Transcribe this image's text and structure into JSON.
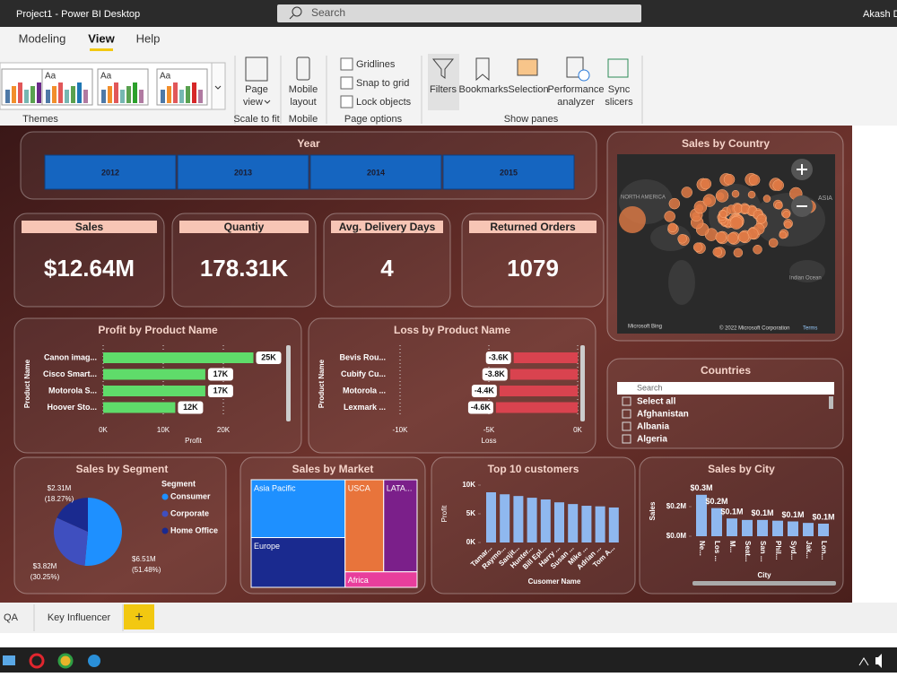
{
  "window": {
    "title": "Project1 - Power BI Desktop",
    "search": "Search",
    "user": "Akash D"
  },
  "ribbon": {
    "tabs": [
      "Modeling",
      "View",
      "Help"
    ],
    "theme_sample": "Aa",
    "groups": [
      {
        "name": "Themes"
      },
      {
        "name": "Scale to fit",
        "buttons": [
          [
            "Page",
            "view"
          ]
        ]
      },
      {
        "name": "Mobile",
        "buttons": [
          [
            "Mobile",
            "layout"
          ]
        ]
      },
      {
        "name": "Page options",
        "options": [
          "Gridlines",
          "Snap to grid",
          "Lock objects"
        ]
      },
      {
        "name": "Show panes",
        "buttons": [
          [
            "Filters"
          ],
          [
            "Bookmarks"
          ],
          [
            "Selection"
          ],
          [
            "Performance",
            "analyzer"
          ],
          [
            "Sync",
            "slicers"
          ]
        ]
      }
    ]
  },
  "report": {
    "year_slicer": {
      "title": "Year",
      "years": [
        "2012",
        "2013",
        "2014",
        "2015"
      ]
    },
    "cards": [
      {
        "label": "Sales",
        "value": "$12.64M"
      },
      {
        "label": "Quantiy",
        "value": "178.31K"
      },
      {
        "label": "Avg. Delivery Days",
        "value": "4"
      },
      {
        "label": "Returned Orders",
        "value": "1079"
      }
    ],
    "profit": {
      "type": "bar",
      "title": "Profit by Product Name",
      "y_label": "Product Name",
      "x_label": "Profit",
      "categories": [
        "Canon imag...",
        "Cisco Smart...",
        "Motorola S...",
        "Hoover Sto..."
      ],
      "values": [
        25000,
        17000,
        17000,
        12000
      ],
      "value_labels": [
        "25K",
        "17K",
        "17K",
        "12K"
      ],
      "color": "#5fdc6a",
      "xlim": [
        0,
        30000
      ],
      "xticks": [
        {
          "value": 0,
          "label": "0K"
        },
        {
          "value": 10000,
          "label": "10K"
        },
        {
          "value": 20000,
          "label": "20K"
        }
      ]
    },
    "loss": {
      "type": "bar",
      "title": "Loss by Product Name",
      "y_label": "Product Name",
      "x_label": "Loss",
      "categories": [
        "Bevis Rou...",
        "Cubify Cu...",
        "Motorola ...",
        "Lexmark ..."
      ],
      "values": [
        -3600,
        -3800,
        -4400,
        -4600
      ],
      "value_labels": [
        "-3.6K",
        "-3.8K",
        "-4.4K",
        "-4.6K"
      ],
      "color": "#d9434f",
      "xlim": [
        -10000,
        0
      ],
      "xticks": [
        {
          "value": -10000,
          "label": "-10K"
        },
        {
          "value": -5000,
          "label": "-5K"
        },
        {
          "value": 0,
          "label": "0K"
        }
      ]
    },
    "map": {
      "title": "Sales by Country",
      "labels": [
        "NORTH AMERICA",
        "ASIA",
        "Indian Ocean"
      ],
      "attribution": "Microsoft Bing",
      "copyright": "© 2022 Microsoft Corporation",
      "terms": "Terms"
    },
    "countries": {
      "title": "Countries",
      "search": "Search",
      "items": [
        "Select all",
        "Afghanistan",
        "Albania",
        "Algeria"
      ]
    },
    "segment": {
      "type": "pie",
      "title": "Sales by Segment",
      "legend_title": "Segment",
      "categories": [
        "Consumer",
        "Corporate",
        "Home Office"
      ],
      "colors": [
        "#1e90ff",
        "#3f4fbf",
        "#1a2a8f"
      ],
      "values": [
        51.48,
        30.25,
        18.27
      ],
      "value_labels": [
        "(51.48%)",
        "(30.25%)",
        "(18.27%)"
      ],
      "amount_labels": [
        "$6.51M",
        "$3.82M",
        "$2.31M"
      ]
    },
    "market": {
      "type": "treemap",
      "title": "Sales by Market",
      "categories": [
        "Asia Pacific",
        "Europe",
        "USCA",
        "LATA...",
        "Africa"
      ],
      "values": [
        3.85,
        3.31,
        2.52,
        2.18,
        0.79
      ],
      "colors": [
        "#1e90ff",
        "#1a2a8f",
        "#e8743b",
        "#7b1f8a",
        "#e83e9c"
      ]
    },
    "top_customers": {
      "type": "bar",
      "title": "Top 10 customers",
      "y_label": "Profit",
      "x_label": "Cusomer Name",
      "categories": [
        "Tamar...",
        "Raymo...",
        "Sanjit...",
        "Hunter...",
        "Bill Epl...",
        "Harry ...",
        "Susan ...",
        "Mike ...",
        "Adrian ...",
        "Tom A..."
      ],
      "values": [
        8750,
        8400,
        8100,
        7800,
        7500,
        7000,
        6700,
        6400,
        6300,
        6100
      ],
      "color": "#8fb8ef",
      "ylim": [
        0,
        10000
      ],
      "yticks": [
        {
          "value": 0,
          "label": "0K"
        },
        {
          "value": 5000,
          "label": "5K"
        },
        {
          "value": 10000,
          "label": "10K"
        }
      ]
    },
    "city": {
      "type": "bar",
      "title": "Sales by City",
      "y_label": "Sales",
      "x_label": "City",
      "categories": [
        "Ne...",
        "Los ...",
        "M...",
        "Seat...",
        "San ...",
        "Phil...",
        "Syd...",
        "Jak...",
        "Lon..."
      ],
      "values": [
        280000,
        190000,
        120000,
        110000,
        110000,
        105000,
        100000,
        90000,
        85000
      ],
      "value_labels": [
        "$0.3M",
        "$0.2M",
        "$0.1M",
        null,
        "$0.1M",
        null,
        "$0.1M",
        null,
        "$0.1M"
      ],
      "color": "#8fb8ef",
      "ylim": [
        0,
        300000
      ],
      "yticks": [
        {
          "value": 0,
          "label": "$0.0M"
        },
        {
          "value": 200000,
          "label": "$0.2M"
        }
      ]
    }
  },
  "page_tabs": {
    "tabs": [
      "QA",
      "Key Influencer"
    ],
    "add": "+"
  }
}
